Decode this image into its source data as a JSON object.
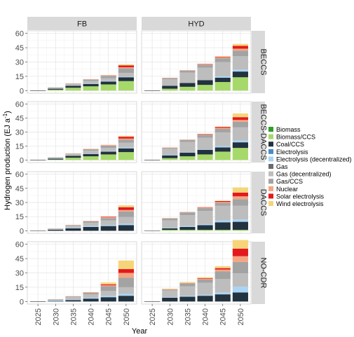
{
  "chart_data": {
    "type": "bar",
    "stacked": true,
    "xlabel": "Year",
    "ylabel_main": "Hydrogen production (EJ a",
    "ylabel_sup": "-1",
    "ylabel_close": ")",
    "ylim": [
      0,
      60
    ],
    "yticks": [
      "0",
      "15",
      "30",
      "45",
      "60"
    ],
    "categories": [
      "2025",
      "2030",
      "2035",
      "2040",
      "2045",
      "2050"
    ],
    "columns": [
      "FB",
      "HYD"
    ],
    "rows": [
      "BECCS",
      "BECCS-DACCS",
      "DACCS",
      "NO-CDR"
    ],
    "legend_position": "right",
    "series": [
      {
        "name": "Biomass",
        "color": "#2ca02c"
      },
      {
        "name": "Biomass/CCS",
        "color": "#a6d96a"
      },
      {
        "name": "Coal/CCS",
        "color": "#22323f"
      },
      {
        "name": "Electrolysis",
        "color": "#4a8bc9"
      },
      {
        "name": "Electrolysis (decentralized)",
        "color": "#a9d4f5"
      },
      {
        "name": "Gas",
        "color": "#6b6b6b"
      },
      {
        "name": "Gas (decentralized)",
        "color": "#bdbdbd"
      },
      {
        "name": "Gas/CCS",
        "color": "#a3a3a3"
      },
      {
        "name": "Nuclear",
        "color": "#f4a582"
      },
      {
        "name": "Solar electrolysis",
        "color": "#e31a1c"
      },
      {
        "name": "Wind electrolysis",
        "color": "#f6d57a"
      }
    ],
    "panels": [
      {
        "row": "BECCS",
        "col": "FB",
        "stacks": [
          [
            0,
            0,
            0,
            0,
            0,
            0,
            0.3,
            0,
            0,
            0,
            0
          ],
          [
            0,
            1,
            1,
            0,
            0,
            0,
            1.5,
            0,
            0,
            0,
            0
          ],
          [
            0,
            3,
            2,
            0,
            0,
            0,
            2,
            0.4,
            0.3,
            0,
            0
          ],
          [
            0,
            4.5,
            2.5,
            0,
            0.5,
            0,
            2.5,
            1.5,
            0.5,
            0,
            0
          ],
          [
            0,
            6.5,
            3,
            0,
            0.5,
            0,
            3,
            2.5,
            0.8,
            0,
            0
          ],
          [
            0,
            10,
            4,
            0,
            0.5,
            0,
            4,
            5,
            1,
            2,
            1
          ]
        ]
      },
      {
        "row": "BECCS",
        "col": "HYD",
        "stacks": [
          [
            0,
            0,
            0,
            0,
            0,
            0,
            0.3,
            0,
            0,
            0,
            0
          ],
          [
            0,
            2,
            3,
            0,
            0,
            0,
            7,
            1,
            0.5,
            0,
            0
          ],
          [
            0,
            4,
            4,
            0,
            0,
            0,
            11,
            2,
            0.5,
            0,
            0
          ],
          [
            0,
            6,
            5,
            0,
            0,
            0,
            13,
            3,
            0.8,
            0.2,
            0
          ],
          [
            0,
            9,
            4.5,
            0,
            1.5,
            0,
            15,
            4,
            1,
            0.5,
            0.5
          ],
          [
            0,
            14,
            6,
            0,
            2,
            0,
            14,
            6,
            2,
            3,
            2
          ]
        ]
      },
      {
        "row": "BECCS-DACCS",
        "col": "FB",
        "stacks": [
          [
            0,
            0,
            0,
            0,
            0,
            0,
            0.3,
            0,
            0,
            0,
            0
          ],
          [
            0,
            0.5,
            1,
            0,
            0,
            0,
            1.5,
            0,
            0,
            0,
            0
          ],
          [
            0,
            2.5,
            2,
            0,
            0,
            0,
            2,
            0.4,
            0.3,
            0,
            0
          ],
          [
            0,
            4,
            2.5,
            0,
            0.5,
            0,
            3,
            1.5,
            0.5,
            0,
            0
          ],
          [
            0,
            6,
            3,
            0,
            0.5,
            0,
            3.5,
            2.5,
            0.8,
            0,
            0
          ],
          [
            0,
            8.5,
            4,
            0,
            1,
            0,
            5,
            3.5,
            1,
            2,
            1
          ]
        ]
      },
      {
        "row": "BECCS-DACCS",
        "col": "HYD",
        "stacks": [
          [
            0,
            0,
            0,
            0,
            0,
            0,
            0.3,
            0,
            0,
            0,
            0
          ],
          [
            0,
            2,
            3,
            0,
            0.5,
            0,
            6.5,
            1,
            0.5,
            0,
            0
          ],
          [
            0,
            4,
            4,
            0,
            0.5,
            0,
            11,
            2,
            0.5,
            0,
            0
          ],
          [
            0,
            6,
            5,
            0,
            0.5,
            0,
            12.5,
            3,
            0.8,
            0.2,
            0
          ],
          [
            0,
            9,
            4.5,
            0,
            1.5,
            0,
            14.5,
            4,
            1,
            1,
            0.5
          ],
          [
            0,
            13,
            6,
            0,
            2,
            0,
            14,
            6,
            2,
            3,
            4
          ]
        ]
      },
      {
        "row": "DACCS",
        "col": "FB",
        "stacks": [
          [
            0,
            0,
            0,
            0,
            0,
            0,
            0.3,
            0,
            0,
            0,
            0
          ],
          [
            0,
            0,
            1,
            0,
            0,
            0,
            1.5,
            0,
            0,
            0,
            0
          ],
          [
            0,
            0,
            2.5,
            0,
            0.5,
            0,
            2.5,
            0.5,
            0.3,
            0,
            0
          ],
          [
            0,
            0,
            4,
            0,
            1,
            0,
            3.5,
            1.5,
            0.5,
            0,
            0
          ],
          [
            0,
            0,
            5,
            0,
            1,
            0,
            5,
            2.5,
            1,
            0.5,
            0
          ],
          [
            0,
            0,
            6,
            0,
            1.5,
            0,
            7,
            6,
            1.5,
            3,
            2
          ]
        ]
      },
      {
        "row": "DACCS",
        "col": "HYD",
        "stacks": [
          [
            0,
            0,
            0,
            0,
            0,
            0,
            0.3,
            0,
            0,
            0,
            0
          ],
          [
            0,
            1,
            1.5,
            0,
            0.5,
            0,
            8,
            2,
            0.5,
            0,
            0
          ],
          [
            0,
            1,
            3,
            0,
            1,
            0,
            11.5,
            3,
            0.5,
            0,
            0
          ],
          [
            0,
            1,
            5,
            0,
            1,
            0,
            14,
            3,
            0.8,
            0.2,
            0
          ],
          [
            0,
            1,
            8,
            0,
            2,
            0,
            15.5,
            3,
            1,
            1,
            0.5
          ],
          [
            0,
            1,
            8.5,
            0,
            2.5,
            0,
            14.5,
            7,
            3,
            4,
            5.5
          ]
        ]
      },
      {
        "row": "NO-CDR",
        "col": "FB",
        "stacks": [
          [
            0,
            0,
            0,
            0,
            0,
            0,
            0.3,
            0,
            0,
            0,
            0
          ],
          [
            0,
            0,
            0.5,
            0,
            0.5,
            0,
            1.5,
            0,
            0,
            0,
            0
          ],
          [
            0,
            0,
            1.5,
            0,
            0.5,
            0,
            2.5,
            0.8,
            0.3,
            0,
            0
          ],
          [
            0,
            0,
            3,
            0,
            1,
            0,
            3.5,
            1.5,
            0.8,
            0,
            0
          ],
          [
            0,
            0,
            4.5,
            0,
            1.5,
            0,
            5,
            5,
            1,
            1,
            2
          ],
          [
            0,
            0,
            6,
            0,
            2,
            0,
            7,
            10,
            5,
            4,
            9
          ]
        ]
      },
      {
        "row": "NO-CDR",
        "col": "HYD",
        "stacks": [
          [
            0,
            0,
            0,
            0,
            0,
            0,
            0.3,
            0,
            0,
            0,
            0
          ],
          [
            0,
            0,
            4,
            0,
            0.5,
            0,
            7,
            1,
            0.5,
            0,
            0.5
          ],
          [
            0,
            0,
            5,
            0,
            1,
            0,
            10,
            3,
            0.5,
            0,
            1
          ],
          [
            0,
            0,
            6,
            0,
            1,
            0,
            12.5,
            3.5,
            1,
            0.5,
            1
          ],
          [
            0,
            0,
            7.5,
            0,
            2,
            0,
            14,
            8,
            2,
            1.5,
            2
          ],
          [
            0,
            0,
            9.5,
            0,
            6,
            0,
            14,
            12,
            6,
            8,
            9
          ]
        ]
      }
    ]
  }
}
